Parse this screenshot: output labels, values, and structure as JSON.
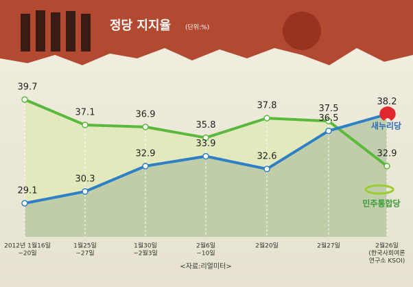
{
  "chart_data": {
    "type": "line",
    "title": "정당 지지율",
    "subtitle": "(단위:%)",
    "source": "<자료:리얼미터>",
    "categories": [
      [
        "2012년 1월16일",
        "~20일"
      ],
      [
        "1월25일",
        "~27일"
      ],
      [
        "1월30일",
        "~2월3일"
      ],
      [
        "2월6일",
        "~10일"
      ],
      [
        "2월20일"
      ],
      [
        "2월27일"
      ],
      [
        "2월26일",
        "(한국사회여론",
        "연구소 KSOI)"
      ]
    ],
    "series": [
      {
        "name": "민주통합당",
        "color": "#5ab93c",
        "values": [
          39.7,
          37.1,
          36.9,
          35.8,
          37.8,
          37.5,
          32.9
        ]
      },
      {
        "name": "새누리당",
        "color": "#2f7fc6",
        "values": [
          29.1,
          30.3,
          32.9,
          33.9,
          32.6,
          36.5,
          38.2
        ]
      }
    ]
  }
}
